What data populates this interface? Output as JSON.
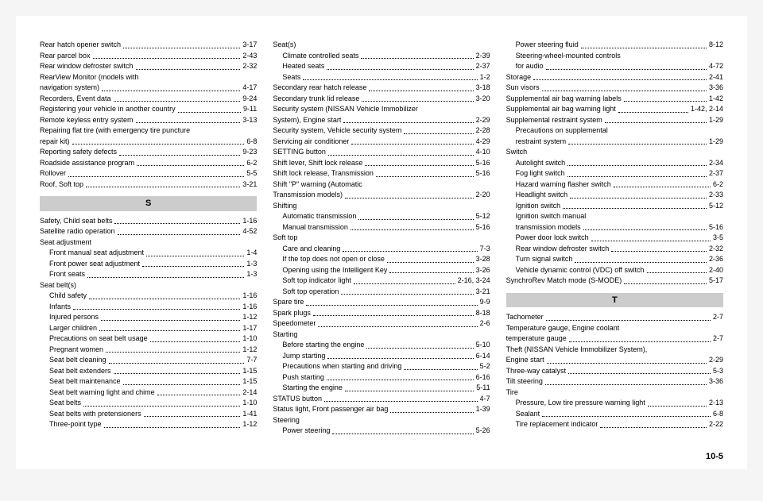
{
  "style": {
    "bg": "#ffffff",
    "headBg": "#cccccc",
    "fontSize": 9,
    "headFontSize": 11,
    "dotColor": "#000000"
  },
  "pageNumber": "10-5",
  "columns": [
    {
      "items": [
        {
          "t": "entry",
          "label": "Rear hatch opener switch",
          "pg": "3-17"
        },
        {
          "t": "entry",
          "label": "Rear parcel box",
          "pg": "2-43"
        },
        {
          "t": "entry",
          "label": "Rear window defroster switch",
          "pg": "2-32"
        },
        {
          "t": "noline",
          "label": "RearView Monitor (models with"
        },
        {
          "t": "entry",
          "label": "navigation system)",
          "pg": "4-17"
        },
        {
          "t": "entry",
          "label": "Recorders, Event data",
          "pg": "9-24"
        },
        {
          "t": "entry",
          "label": "Registering your vehicle in another country",
          "pg": "9-11"
        },
        {
          "t": "entry",
          "label": "Remote keyless entry system",
          "pg": "3-13"
        },
        {
          "t": "noline",
          "label": "Repairing flat tire (with emergency tire puncture"
        },
        {
          "t": "entry",
          "label": "repair kit)",
          "pg": "6-8"
        },
        {
          "t": "entry",
          "label": "Reporting safety defects",
          "pg": "9-23"
        },
        {
          "t": "entry",
          "label": "Roadside assistance program",
          "pg": "6-2"
        },
        {
          "t": "entry",
          "label": "Rollover",
          "pg": "5-5"
        },
        {
          "t": "entry",
          "label": "Roof, Soft top",
          "pg": "3-21"
        },
        {
          "t": "head",
          "label": "S"
        },
        {
          "t": "entry",
          "label": "Safety, Child seat belts",
          "pg": "1-16"
        },
        {
          "t": "entry",
          "label": "Satellite radio operation",
          "pg": "4-52"
        },
        {
          "t": "noline",
          "label": "Seat adjustment"
        },
        {
          "t": "entry",
          "indent": 1,
          "label": "Front manual seat adjustment",
          "pg": "1-4"
        },
        {
          "t": "entry",
          "indent": 1,
          "label": "Front power seat adjustment",
          "pg": "1-3"
        },
        {
          "t": "entry",
          "indent": 1,
          "label": "Front seats",
          "pg": "1-3"
        },
        {
          "t": "noline",
          "label": "Seat belt(s)"
        },
        {
          "t": "entry",
          "indent": 1,
          "label": "Child safety",
          "pg": "1-16"
        },
        {
          "t": "entry",
          "indent": 1,
          "label": "Infants",
          "pg": "1-16"
        },
        {
          "t": "entry",
          "indent": 1,
          "label": "Injured persons",
          "pg": "1-12"
        },
        {
          "t": "entry",
          "indent": 1,
          "label": "Larger children",
          "pg": "1-17"
        },
        {
          "t": "entry",
          "indent": 1,
          "label": "Precautions on seat belt usage",
          "pg": "1-10"
        },
        {
          "t": "entry",
          "indent": 1,
          "label": "Pregnant women",
          "pg": "1-12"
        },
        {
          "t": "entry",
          "indent": 1,
          "label": "Seat belt cleaning",
          "pg": "7-7"
        },
        {
          "t": "entry",
          "indent": 1,
          "label": "Seat belt extenders",
          "pg": "1-15"
        },
        {
          "t": "entry",
          "indent": 1,
          "label": "Seat belt maintenance",
          "pg": "1-15"
        },
        {
          "t": "entry",
          "indent": 1,
          "label": "Seat belt warning light and chime",
          "pg": "2-14"
        },
        {
          "t": "entry",
          "indent": 1,
          "label": "Seat belts",
          "pg": "1-10"
        },
        {
          "t": "entry",
          "indent": 1,
          "label": "Seat belts with pretensioners",
          "pg": "1-41"
        },
        {
          "t": "entry",
          "indent": 1,
          "label": "Three-point type",
          "pg": "1-12"
        }
      ]
    },
    {
      "items": [
        {
          "t": "noline",
          "label": "Seat(s)"
        },
        {
          "t": "entry",
          "indent": 1,
          "label": "Climate controlled seats",
          "pg": "2-39"
        },
        {
          "t": "entry",
          "indent": 1,
          "label": "Heated seats",
          "pg": "2-37"
        },
        {
          "t": "entry",
          "indent": 1,
          "label": "Seats",
          "pg": "1-2"
        },
        {
          "t": "entry",
          "label": "Secondary rear hatch release",
          "pg": "3-18"
        },
        {
          "t": "entry",
          "label": "Secondary trunk lid release",
          "pg": "3-20"
        },
        {
          "t": "noline",
          "label": "Security system (NISSAN Vehicle Immobilizer"
        },
        {
          "t": "entry",
          "label": "System), Engine start",
          "pg": "2-29"
        },
        {
          "t": "entry",
          "label": "Security system, Vehicle security system",
          "pg": "2-28"
        },
        {
          "t": "entry",
          "label": "Servicing air conditioner",
          "pg": "4-29"
        },
        {
          "t": "entry",
          "label": "SETTING button",
          "pg": "4-10"
        },
        {
          "t": "entry",
          "label": "Shift lever, Shift lock release",
          "pg": "5-16"
        },
        {
          "t": "entry",
          "label": "Shift lock release, Transmission",
          "pg": "5-16"
        },
        {
          "t": "noline",
          "label": "Shift \"P\" warning (Automatic"
        },
        {
          "t": "entry",
          "label": "Transmission models)",
          "pg": "2-20"
        },
        {
          "t": "noline",
          "label": "Shifting"
        },
        {
          "t": "entry",
          "indent": 1,
          "label": "Automatic transmission",
          "pg": "5-12"
        },
        {
          "t": "entry",
          "indent": 1,
          "label": "Manual transmission",
          "pg": "5-16"
        },
        {
          "t": "noline",
          "label": "Soft top"
        },
        {
          "t": "entry",
          "indent": 1,
          "label": "Care and cleaning",
          "pg": "7-3"
        },
        {
          "t": "entry",
          "indent": 1,
          "label": "If the top does not open or close",
          "pg": "3-28"
        },
        {
          "t": "entry",
          "indent": 1,
          "label": "Opening using the Intelligent Key",
          "pg": "3-26"
        },
        {
          "t": "entry",
          "indent": 1,
          "label": "Soft top indicator light",
          "pg": "2-16, 3-24"
        },
        {
          "t": "entry",
          "indent": 1,
          "label": "Soft top operation",
          "pg": "3-21"
        },
        {
          "t": "entry",
          "label": "Spare tire",
          "pg": "9-9"
        },
        {
          "t": "entry",
          "label": "Spark plugs",
          "pg": "8-18"
        },
        {
          "t": "entry",
          "label": "Speedometer",
          "pg": "2-6"
        },
        {
          "t": "noline",
          "label": "Starting"
        },
        {
          "t": "entry",
          "indent": 1,
          "label": "Before starting the engine",
          "pg": "5-10"
        },
        {
          "t": "entry",
          "indent": 1,
          "label": "Jump starting",
          "pg": "6-14"
        },
        {
          "t": "entry",
          "indent": 1,
          "label": "Precautions when starting and driving",
          "pg": "5-2"
        },
        {
          "t": "entry",
          "indent": 1,
          "label": "Push starting",
          "pg": "6-16"
        },
        {
          "t": "entry",
          "indent": 1,
          "label": "Starting the engine",
          "pg": "5-11"
        },
        {
          "t": "entry",
          "label": "STATUS button",
          "pg": "4-7"
        },
        {
          "t": "entry",
          "label": "Status light, Front passenger air bag",
          "pg": "1-39"
        },
        {
          "t": "noline",
          "label": "Steering"
        },
        {
          "t": "entry",
          "indent": 1,
          "label": "Power steering",
          "pg": "5-26"
        }
      ]
    },
    {
      "items": [
        {
          "t": "entry",
          "indent": 1,
          "label": "Power steering fluid",
          "pg": "8-12"
        },
        {
          "t": "noline",
          "indent": 1,
          "label": "Steering-wheel-mounted controls"
        },
        {
          "t": "entry",
          "indent": 1,
          "label": "for audio",
          "pg": "4-72"
        },
        {
          "t": "entry",
          "label": "Storage",
          "pg": "2-41"
        },
        {
          "t": "entry",
          "label": "Sun visors",
          "pg": "3-36"
        },
        {
          "t": "entry",
          "label": "Supplemental air bag warning labels",
          "pg": "1-42"
        },
        {
          "t": "entry",
          "label": "Supplemental air bag warning light",
          "pg": "1-42, 2-14"
        },
        {
          "t": "entry",
          "label": "Supplemental restraint system",
          "pg": "1-29"
        },
        {
          "t": "noline",
          "indent": 1,
          "label": "Precautions on supplemental"
        },
        {
          "t": "entry",
          "indent": 1,
          "label": "restraint system",
          "pg": "1-29"
        },
        {
          "t": "noline",
          "label": "Switch"
        },
        {
          "t": "entry",
          "indent": 1,
          "label": "Autolight switch",
          "pg": "2-34"
        },
        {
          "t": "entry",
          "indent": 1,
          "label": "Fog light switch",
          "pg": "2-37"
        },
        {
          "t": "entry",
          "indent": 1,
          "label": "Hazard warning flasher switch",
          "pg": "6-2"
        },
        {
          "t": "entry",
          "indent": 1,
          "label": "Headlight switch",
          "pg": "2-33"
        },
        {
          "t": "entry",
          "indent": 1,
          "label": "Ignition switch",
          "pg": "5-12"
        },
        {
          "t": "noline",
          "indent": 1,
          "label": "Ignition switch manual"
        },
        {
          "t": "entry",
          "indent": 1,
          "label": "transmission models",
          "pg": "5-16"
        },
        {
          "t": "entry",
          "indent": 1,
          "label": "Power door lock switch",
          "pg": "3-5"
        },
        {
          "t": "entry",
          "indent": 1,
          "label": "Rear window defroster switch",
          "pg": "2-32"
        },
        {
          "t": "entry",
          "indent": 1,
          "label": "Turn signal switch",
          "pg": "2-36"
        },
        {
          "t": "entry",
          "indent": 1,
          "label": "Vehicle dynamic control (VDC) off switch",
          "pg": "2-40"
        },
        {
          "t": "entry",
          "label": "SynchroRev Match mode (S-MODE)",
          "pg": "5-17"
        },
        {
          "t": "head",
          "label": "T"
        },
        {
          "t": "entry",
          "label": "Tachometer",
          "pg": "2-7"
        },
        {
          "t": "noline",
          "label": "Temperature gauge, Engine coolant"
        },
        {
          "t": "entry",
          "label": "temperature gauge",
          "pg": "2-7"
        },
        {
          "t": "noline",
          "label": "Theft (NISSAN Vehicle Immobilizer System),"
        },
        {
          "t": "entry",
          "label": "Engine start",
          "pg": "2-29"
        },
        {
          "t": "entry",
          "label": "Three-way catalyst",
          "pg": "5-3"
        },
        {
          "t": "entry",
          "label": "Tilt steering",
          "pg": "3-36"
        },
        {
          "t": "noline",
          "label": "Tire"
        },
        {
          "t": "entry",
          "indent": 1,
          "label": "Pressure, Low tire pressure warning light",
          "pg": "2-13"
        },
        {
          "t": "entry",
          "indent": 1,
          "label": "Sealant",
          "pg": "6-8"
        },
        {
          "t": "entry",
          "indent": 1,
          "label": "Tire replacement indicator",
          "pg": "2-22"
        }
      ]
    }
  ]
}
